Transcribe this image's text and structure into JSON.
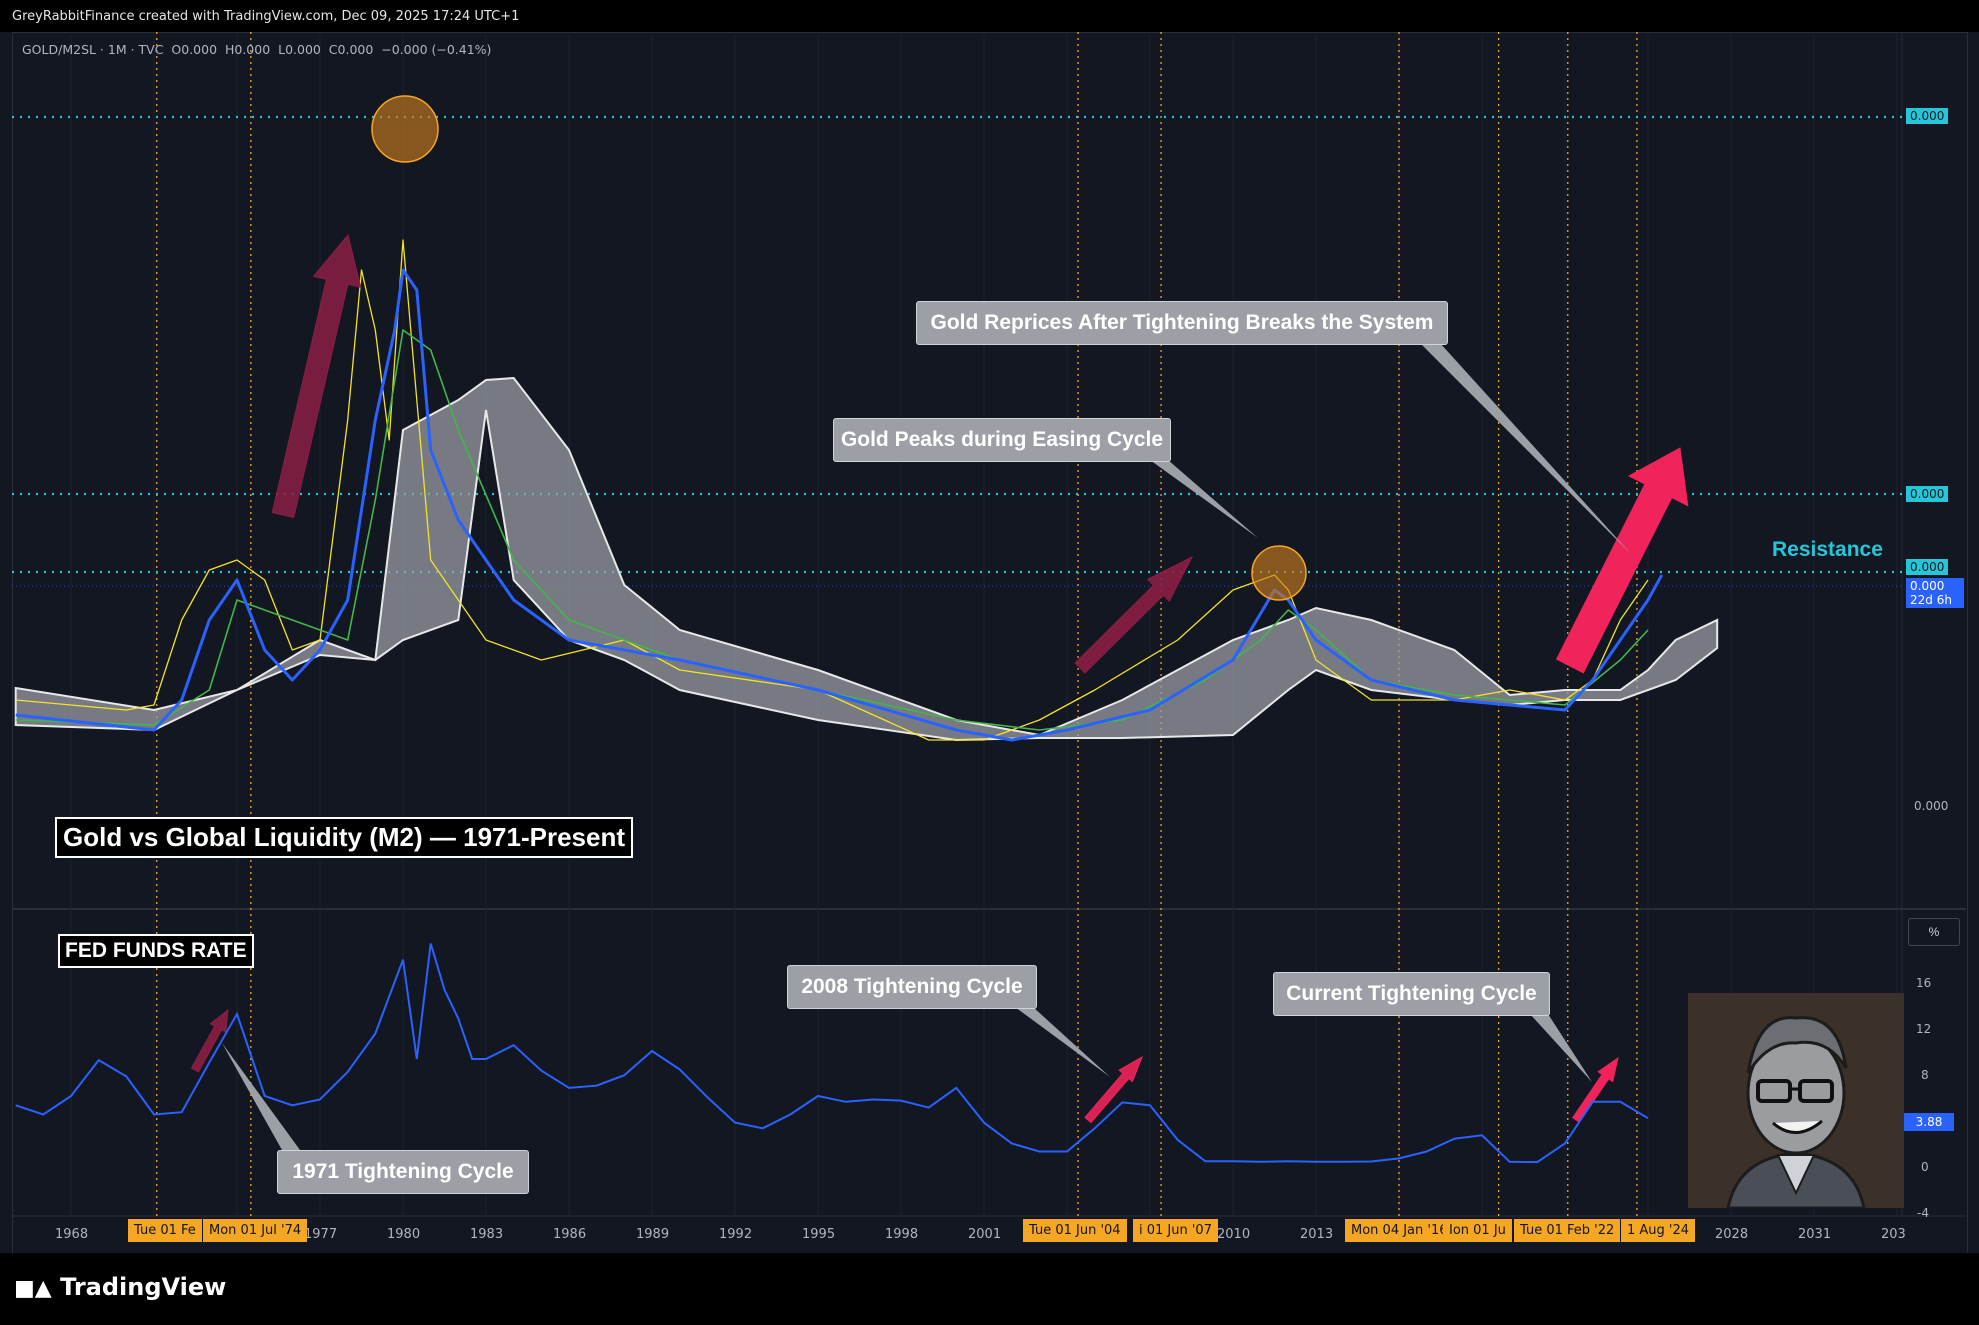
{
  "header": {
    "credit": "GreyRabbitFinance created with TradingView.com, Dec 09, 2025 17:24 UTC+1"
  },
  "symbol_bar": {
    "text": "GOLD/M2SL · 1M · TVC  O0.000  H0.000  L0.000  C0.000  −0.000 (−0.41%)"
  },
  "footer": {
    "brand": "TradingView"
  },
  "colors": {
    "background": "#131722",
    "blue": "#2962ff",
    "yellow": "#f4e22a",
    "green": "#43b649",
    "cyan": "#26c6da",
    "orange": "#f5a623",
    "pink": "#f0245a",
    "maroon": "#8b1e44"
  },
  "upper_pane": {
    "title": "Gold vs Global Liquidity (M2) — 1971-Present",
    "resistance_label": "Resistance",
    "price_tags": [
      "0.000",
      "0.000",
      "0.000",
      "0.000",
      "0.000"
    ],
    "current_price": "0.000",
    "countdown": "22d 6h",
    "callouts": [
      "Gold Reprices After Tightening Breaks the System",
      "Gold Peaks during Easing Cycle"
    ]
  },
  "lower_pane": {
    "title": "FED FUNDS RATE",
    "unit_button": "%",
    "current_value": "3.88",
    "callouts": [
      "2008 Tightening Cycle",
      "Current Tightening Cycle",
      "1971 Tightening Cycle"
    ]
  },
  "x_axis": {
    "ticks": [
      "1968",
      "1977",
      "1980",
      "1983",
      "1986",
      "1989",
      "1992",
      "1995",
      "1998",
      "2001",
      "2010",
      "2013",
      "2028",
      "2031",
      "203"
    ],
    "highlight_labels": [
      "Tue 01 Fe",
      "Mon 01 Jul '74",
      "Tue 01 Jun '04",
      "i 01 Jun '07",
      "Mon 04 Jan '16",
      "Ion 01 Ju",
      "Tue 01 Feb '22",
      "1 Aug '24"
    ]
  },
  "chart_data": [
    {
      "type": "line",
      "title": "Gold vs Global Liquidity (M2) — 1971-Present",
      "x_label": "",
      "y_label": "",
      "y_ticks": [
        "0.000"
      ],
      "series": [],
      "annotations": [
        "Resistance",
        "Gold Reprices After Tightening Breaks the System",
        "Gold Peaks during Easing Cycle"
      ]
    },
    {
      "type": "line",
      "title": "FED FUNDS RATE",
      "y_ticks": [
        16,
        12,
        8,
        4,
        0,
        -4
      ],
      "ylim": [
        -4,
        18
      ],
      "x": [
        1966,
        1967,
        1968,
        1969,
        1970,
        1971,
        1972,
        1973,
        1974,
        1975,
        1976,
        1977,
        1978,
        1979,
        1980,
        1980.5,
        1981,
        1981.5,
        1982,
        1982.5,
        1983,
        1984,
        1985,
        1986,
        1987,
        1988,
        1989,
        1990,
        1991,
        1992,
        1993,
        1994,
        1995,
        1996,
        1997,
        1998,
        1999,
        2000,
        2001,
        2002,
        2003,
        2004,
        2005,
        2006,
        2007,
        2008,
        2009,
        2010,
        2011,
        2012,
        2013,
        2014,
        2015,
        2016,
        2017,
        2018,
        2019,
        2020,
        2021,
        2022,
        2023,
        2024,
        2025
      ],
      "values": [
        5.0,
        4.2,
        5.8,
        8.9,
        7.5,
        4.2,
        4.4,
        8.7,
        12.9,
        5.8,
        5.0,
        5.5,
        7.9,
        11.2,
        17.6,
        9.0,
        19.0,
        15.0,
        12.5,
        9.0,
        9.0,
        10.2,
        8.0,
        6.5,
        6.7,
        7.6,
        9.7,
        8.1,
        5.7,
        3.5,
        3.0,
        4.2,
        5.8,
        5.3,
        5.5,
        5.4,
        4.8,
        6.5,
        3.5,
        1.7,
        1.0,
        1.0,
        3.0,
        5.25,
        5.0,
        2.0,
        0.15,
        0.15,
        0.1,
        0.15,
        0.1,
        0.1,
        0.13,
        0.4,
        1.0,
        2.1,
        2.4,
        0.1,
        0.08,
        1.7,
        5.3,
        5.3,
        3.88
      ]
    }
  ]
}
